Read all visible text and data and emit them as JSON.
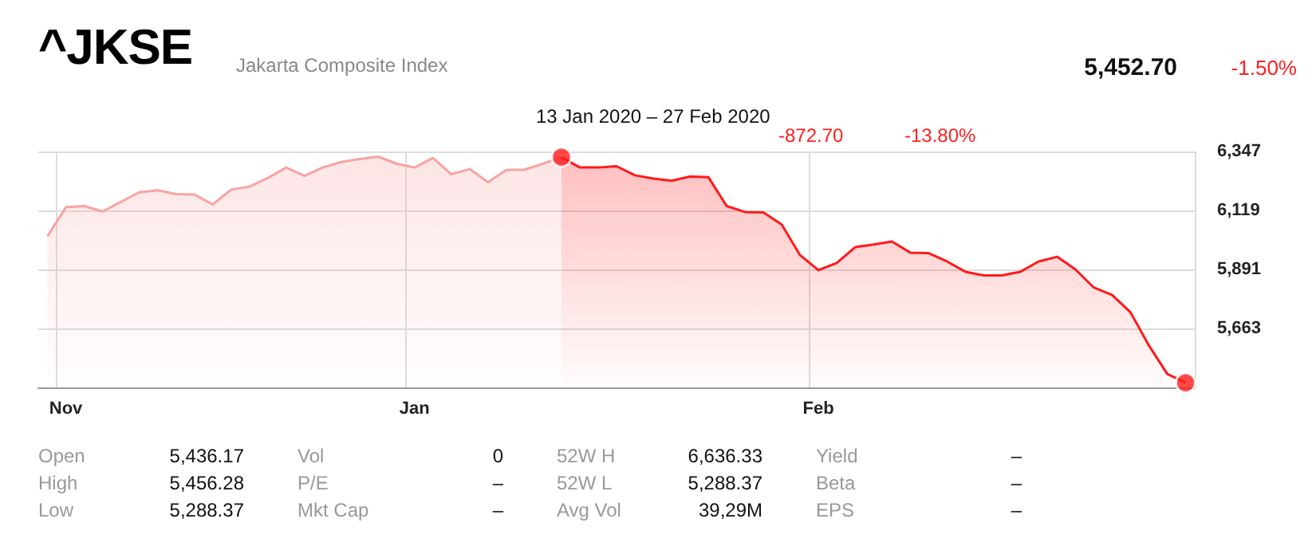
{
  "chart_data": {
    "type": "area",
    "title": "^JKSE",
    "subtitle": "Jakarta Composite Index",
    "annotations": [
      "5,452.70",
      "-1.50%",
      "13 Jan 2020 – 27 Feb 2020",
      "-872.70",
      "-13.80%",
      "Open",
      "5,436.17",
      "High",
      "5,456.28",
      "Low",
      "5,288.37",
      "Vol",
      "0",
      "P/E",
      "–",
      "Mkt Cap",
      "–",
      "52W H",
      "6,636.33",
      "52W L",
      "5,288.37",
      "Avg Vol",
      "39,29M",
      "Yield",
      "–",
      "Beta",
      "–",
      "EPS",
      "–"
    ],
    "categories": [
      null,
      "Nov",
      null,
      null,
      null,
      null,
      null,
      null,
      null,
      null,
      null,
      null,
      null,
      null,
      null,
      null,
      null,
      null,
      null,
      null,
      "Jan",
      null,
      null,
      null,
      null,
      null,
      null,
      null,
      null,
      null,
      null,
      null,
      null,
      null,
      null,
      null,
      null,
      null,
      null,
      null,
      null,
      null,
      "Feb",
      null,
      null,
      null,
      null,
      null,
      null,
      null,
      null,
      null,
      null,
      null,
      null,
      null,
      null,
      null,
      null,
      null,
      null,
      null,
      null
    ],
    "series": [
      {
        "color": "#f7a3a3",
        "values": [
          6019,
          6131,
          6136,
          6115,
          6152,
          6189,
          6197,
          6182,
          6181,
          6142,
          6199,
          6211,
          6244,
          6285,
          6253,
          6285,
          6306,
          6318,
          6327,
          6300,
          6285,
          6322,
          6259,
          6279,
          6228,
          6275,
          6277,
          6300,
          6325,
          null,
          null,
          null,
          null,
          null,
          null,
          null,
          null,
          null,
          null,
          null,
          null,
          null,
          null,
          null,
          null,
          null,
          null,
          null,
          null,
          null,
          null,
          null,
          null,
          null,
          null,
          null,
          null,
          null,
          null,
          null,
          null,
          null,
          null
        ]
      },
      {
        "color": "#ff1a1a",
        "values": [
          null,
          null,
          null,
          null,
          null,
          null,
          null,
          null,
          null,
          null,
          null,
          null,
          null,
          null,
          null,
          null,
          null,
          null,
          null,
          null,
          null,
          null,
          null,
          null,
          null,
          null,
          null,
          null,
          6325,
          6285,
          6285,
          6290,
          6255,
          6242,
          6234,
          6250,
          6248,
          6136,
          6113,
          6111,
          6064,
          5946,
          5888,
          5916,
          5977,
          5987,
          5999,
          5956,
          5954,
          5922,
          5882,
          5868,
          5868,
          5882,
          5922,
          5940,
          5891,
          5821,
          5792,
          5725,
          5597,
          5487,
          5453
        ]
      },
      {
        "type": "scatter",
        "color": "#ff1a1a",
        "marker": "circle",
        "values": [
          null,
          null,
          null,
          null,
          null,
          null,
          null,
          null,
          null,
          null,
          null,
          null,
          null,
          null,
          null,
          null,
          null,
          null,
          null,
          null,
          null,
          null,
          null,
          null,
          null,
          null,
          null,
          null,
          6325,
          null,
          null,
          null,
          null,
          null,
          null,
          null,
          null,
          null,
          null,
          null,
          null,
          null,
          null,
          null,
          null,
          null,
          null,
          null,
          null,
          null,
          null,
          null,
          null,
          null,
          null,
          null,
          null,
          null,
          null,
          null,
          null,
          null,
          5453
        ]
      }
    ],
    "ylim": [
      5435,
      6347
    ],
    "yticks": [
      {
        "value": 6347,
        "label": "6,347"
      },
      {
        "value": 6119,
        "label": "6,119"
      },
      {
        "value": 5891,
        "label": "5,891"
      },
      {
        "value": 5663,
        "label": "5,663"
      }
    ],
    "grid": true
  }
}
